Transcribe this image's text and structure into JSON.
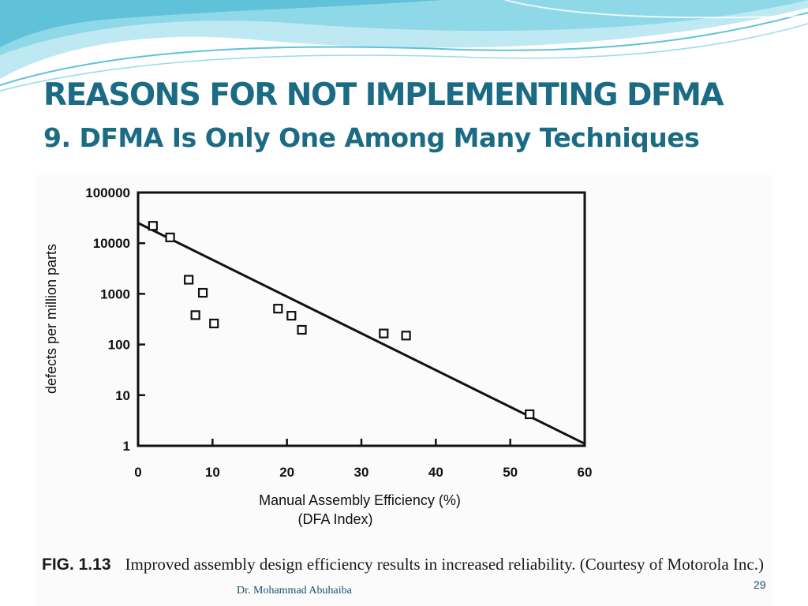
{
  "slide": {
    "title": "REASONS FOR NOT IMPLEMENTING DFMA",
    "subtitle_number": "9.",
    "subtitle_text": "DFMA Is Only One Among Many Techniques",
    "footer_author": "Dr. Mohammad Abuhaiba",
    "page_number": "29"
  },
  "figure": {
    "caption_label": "FIG. 1.13",
    "caption_text": "Improved assembly design efficiency results in increased reliability. (Courtesy of Motorola Inc.)"
  },
  "colors": {
    "title": "#1b6b85",
    "wave_light": "#bfe9f2",
    "wave_dark": "#5fc2d8"
  },
  "chart_data": {
    "type": "scatter",
    "xlabel": "Manual Assembly Efficiency (%)",
    "xlabel2": "(DFA Index)",
    "ylabel": "defects per million parts",
    "xlim": [
      0,
      60
    ],
    "ylim": [
      1,
      100000
    ],
    "yscale": "log",
    "x_ticks": [
      0,
      10,
      20,
      30,
      40,
      50,
      60
    ],
    "x_tick_labels": [
      "0",
      "10",
      "20",
      "30",
      "40",
      "50",
      "60"
    ],
    "y_ticks": [
      1,
      10,
      100,
      1000,
      10000,
      100000
    ],
    "y_tick_labels": [
      "1",
      "10",
      "100",
      "1000",
      "10000",
      "100000"
    ],
    "grid": false,
    "marker": "square",
    "points": [
      {
        "x": 2,
        "y": 22000
      },
      {
        "x": 4.3,
        "y": 13000
      },
      {
        "x": 6.8,
        "y": 1900
      },
      {
        "x": 8.7,
        "y": 1050
      },
      {
        "x": 7.7,
        "y": 380
      },
      {
        "x": 10.2,
        "y": 260
      },
      {
        "x": 18.8,
        "y": 510
      },
      {
        "x": 20.6,
        "y": 370
      },
      {
        "x": 22,
        "y": 195
      },
      {
        "x": 33,
        "y": 165
      },
      {
        "x": 36,
        "y": 150
      },
      {
        "x": 52.6,
        "y": 4.2
      }
    ],
    "trend_line": [
      {
        "x": 0,
        "y": 25000
      },
      {
        "x": 60,
        "y": 1.1
      }
    ]
  }
}
